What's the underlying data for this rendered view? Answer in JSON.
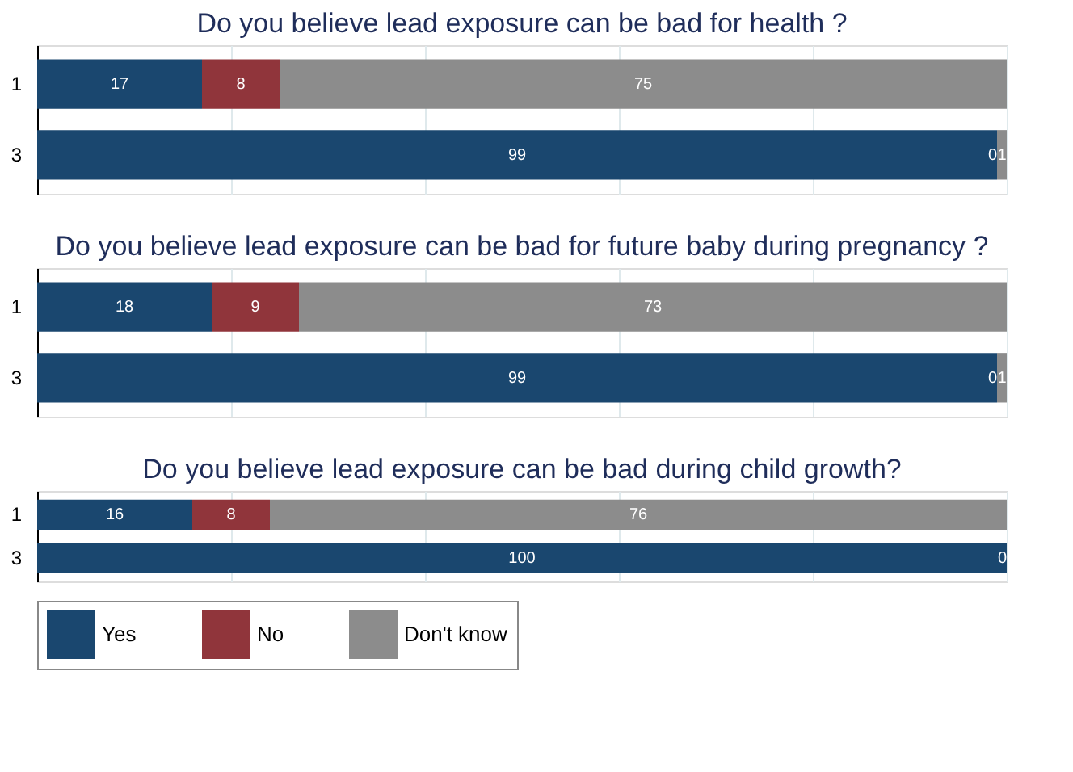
{
  "chart_data": [
    {
      "type": "bar",
      "orientation": "horizontal",
      "stacked": true,
      "title": "Do you believe lead exposure can be bad for health ?",
      "categories": [
        "1",
        "3"
      ],
      "series": [
        {
          "color": "#1a476f",
          "values": [
            17,
            99
          ]
        },
        {
          "color": "#90353b",
          "values": [
            8,
            0
          ]
        },
        {
          "color": "#8c8c8c",
          "values": [
            75,
            1
          ]
        }
      ],
      "xlim": [
        0,
        100
      ],
      "xticks": [
        0,
        20,
        40,
        60,
        80,
        100
      ],
      "grid": "x",
      "tick_labels": "y",
      "data_labels": true,
      "legend": false
    },
    {
      "type": "bar",
      "orientation": "horizontal",
      "stacked": true,
      "title": "Do you believe lead exposure can be bad for future baby during pregnancy ?",
      "categories": [
        "1",
        "3"
      ],
      "series": [
        {
          "color": "#1a476f",
          "values": [
            18,
            99
          ]
        },
        {
          "color": "#90353b",
          "values": [
            9,
            0
          ]
        },
        {
          "color": "#8c8c8c",
          "values": [
            73,
            1
          ]
        }
      ],
      "xlim": [
        0,
        100
      ],
      "xticks": [
        0,
        20,
        40,
        60,
        80,
        100
      ],
      "grid": "x",
      "tick_labels": "y",
      "data_labels": true,
      "legend": false
    },
    {
      "type": "bar",
      "orientation": "horizontal",
      "stacked": true,
      "title": "Do you believe lead exposure can be bad during child growth?",
      "categories": [
        "1",
        "3"
      ],
      "series": [
        {
          "name": "Yes",
          "color": "#1a476f",
          "values": [
            16,
            100
          ]
        },
        {
          "name": "No",
          "color": "#90353b",
          "values": [
            8,
            0
          ],
          "value_labels": [
            "8",
            null
          ]
        },
        {
          "name": "Don't know",
          "color": "#8c8c8c",
          "values": [
            76,
            0
          ]
        }
      ],
      "xlim": [
        0,
        100
      ],
      "xticks": [
        0,
        20,
        40,
        60,
        80,
        100
      ],
      "grid": "x",
      "tick_labels": "y",
      "data_labels": true,
      "legend": "bottom"
    }
  ]
}
